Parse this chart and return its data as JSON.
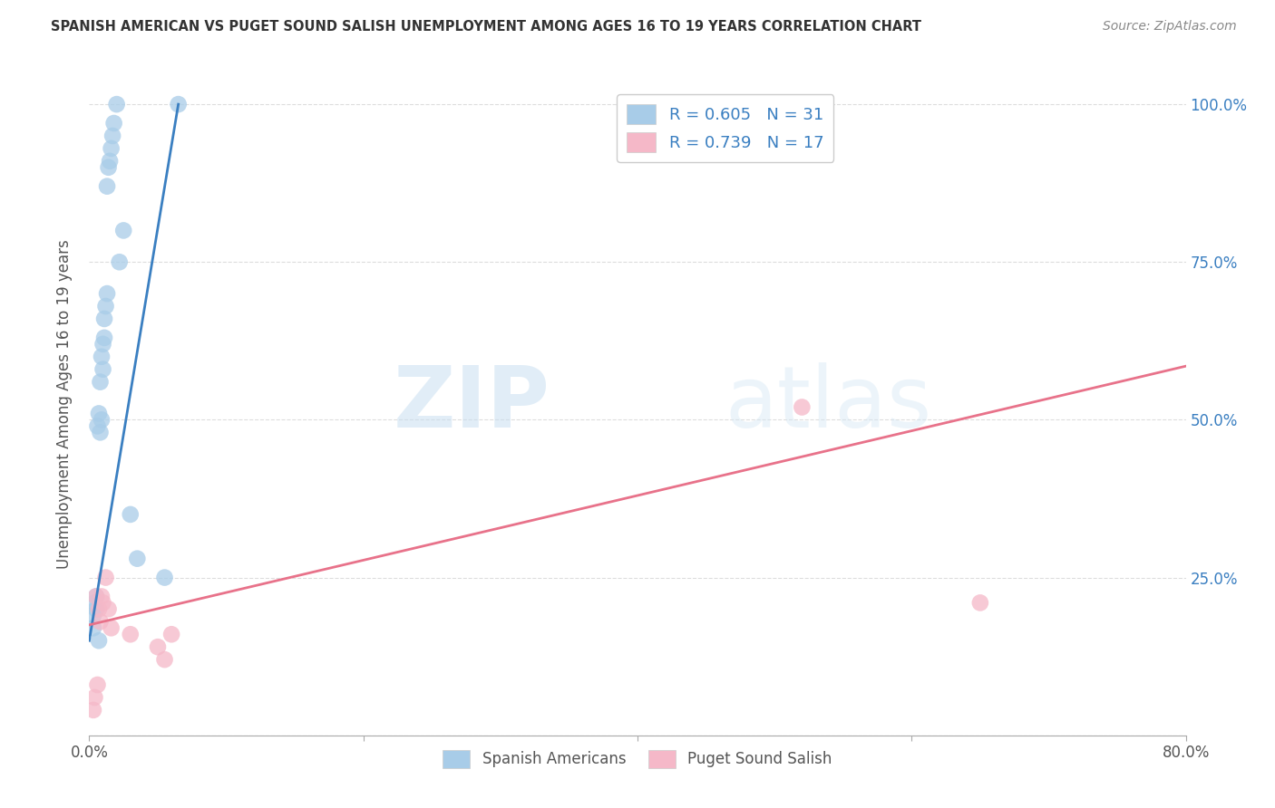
{
  "title": "SPANISH AMERICAN VS PUGET SOUND SALISH UNEMPLOYMENT AMONG AGES 16 TO 19 YEARS CORRELATION CHART",
  "source": "Source: ZipAtlas.com",
  "ylabel": "Unemployment Among Ages 16 to 19 years",
  "xlim": [
    0.0,
    0.8
  ],
  "ylim": [
    0.0,
    1.05
  ],
  "legend_text_color": "#3a7fc1",
  "blue_color": "#a8cce8",
  "pink_color": "#f5b8c8",
  "blue_line_color": "#3a7fc1",
  "pink_line_color": "#e8728a",
  "blue_scatter_x": [
    0.003,
    0.003,
    0.004,
    0.005,
    0.005,
    0.006,
    0.007,
    0.007,
    0.008,
    0.008,
    0.009,
    0.009,
    0.01,
    0.01,
    0.011,
    0.011,
    0.012,
    0.013,
    0.013,
    0.014,
    0.015,
    0.016,
    0.017,
    0.018,
    0.02,
    0.022,
    0.025,
    0.03,
    0.035,
    0.055,
    0.065
  ],
  "blue_scatter_y": [
    0.17,
    0.19,
    0.21,
    0.2,
    0.22,
    0.49,
    0.51,
    0.15,
    0.48,
    0.56,
    0.5,
    0.6,
    0.58,
    0.62,
    0.63,
    0.66,
    0.68,
    0.7,
    0.87,
    0.9,
    0.91,
    0.93,
    0.95,
    0.97,
    1.0,
    0.75,
    0.8,
    0.35,
    0.28,
    0.25,
    1.0
  ],
  "pink_scatter_x": [
    0.003,
    0.004,
    0.005,
    0.006,
    0.007,
    0.008,
    0.009,
    0.01,
    0.012,
    0.014,
    0.016,
    0.03,
    0.05,
    0.055,
    0.06,
    0.52,
    0.65
  ],
  "pink_scatter_y": [
    0.04,
    0.06,
    0.22,
    0.08,
    0.2,
    0.18,
    0.22,
    0.21,
    0.25,
    0.2,
    0.17,
    0.16,
    0.14,
    0.12,
    0.16,
    0.52,
    0.21
  ],
  "blue_line_x": [
    0.0,
    0.065
  ],
  "blue_line_y": [
    0.15,
    1.0
  ],
  "pink_line_x": [
    0.0,
    0.8
  ],
  "pink_line_y": [
    0.175,
    0.585
  ],
  "watermark_zip": "ZIP",
  "watermark_atlas": "atlas",
  "background_color": "#ffffff",
  "grid_color": "#dddddd",
  "tick_color": "#3a7fc1",
  "axis_color": "#aaaaaa",
  "title_color": "#333333",
  "source_color": "#888888"
}
